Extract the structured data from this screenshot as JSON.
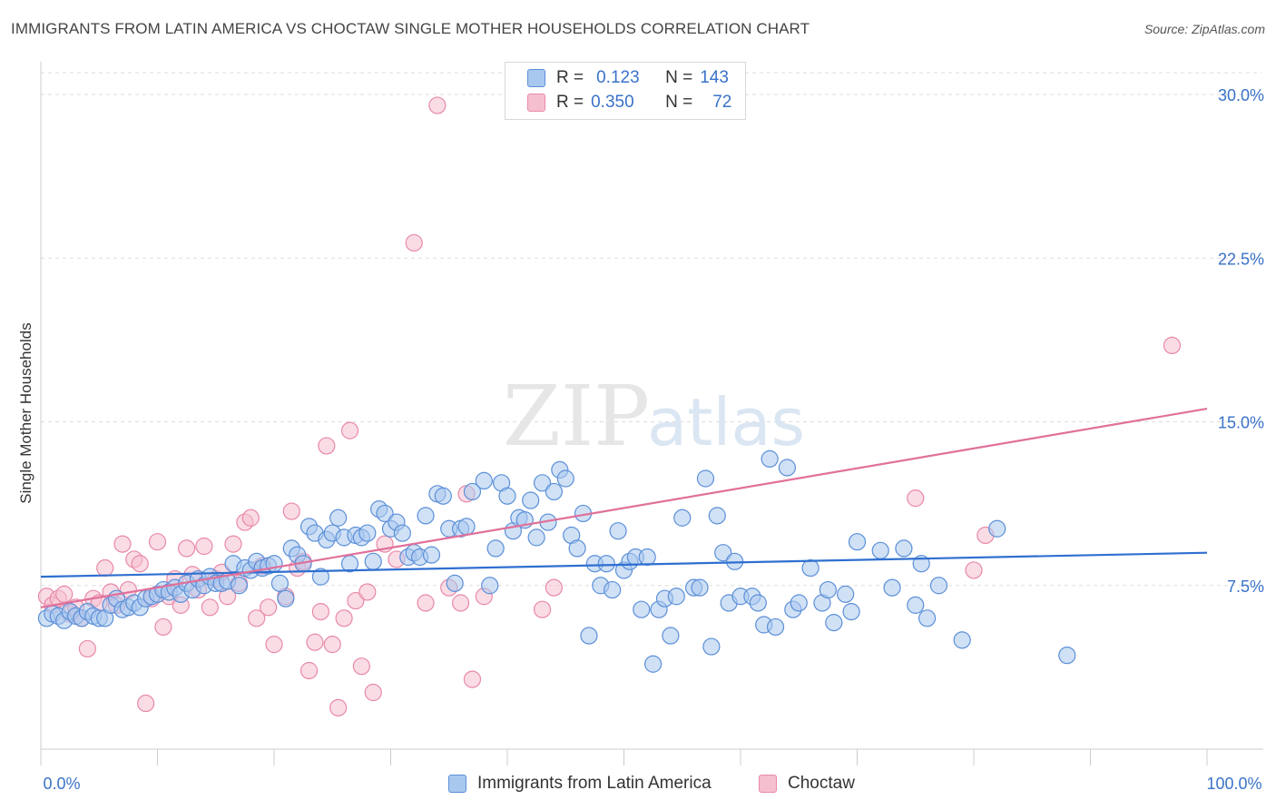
{
  "title": "IMMIGRANTS FROM LATIN AMERICA VS CHOCTAW SINGLE MOTHER HOUSEHOLDS CORRELATION CHART",
  "source": "Source: ZipAtlas.com",
  "watermark": {
    "zip": "ZIP",
    "atlas": "atlas"
  },
  "colors": {
    "blue_fill": "#a9c8ef",
    "blue_stroke": "#5b8fd8",
    "blue_line": "#2f6fd0",
    "pink_fill": "#f6bfd0",
    "pink_stroke": "#e889a8",
    "pink_line": "#e0709a",
    "axis_label": "#3a72c8",
    "grid": "#dddddd"
  },
  "legend": {
    "r_label": "R =",
    "n_label": "N =",
    "series1": {
      "r": "0.123",
      "n": "143"
    },
    "series2": {
      "r": "0.350",
      "n": "72"
    }
  },
  "chart_data": {
    "type": "scatter",
    "title": "IMMIGRANTS FROM LATIN AMERICA VS CHOCTAW SINGLE MOTHER HOUSEHOLDS CORRELATION CHART",
    "xlabel": "",
    "ylabel": "Single Mother Households",
    "xlim": [
      0,
      100
    ],
    "ylim": [
      0,
      31
    ],
    "x_tick_labels": [
      "0.0%",
      "100.0%"
    ],
    "y_ticks": [
      7.5,
      15.0,
      22.5,
      30.0
    ],
    "y_tick_labels": [
      "7.5%",
      "15.0%",
      "22.5%",
      "30.0%"
    ],
    "legend_position": "top-center",
    "series": [
      {
        "name": "Immigrants from Latin America",
        "r": 0.123,
        "n": 143,
        "trend": [
          [
            0,
            7.9
          ],
          [
            100,
            9.0
          ]
        ],
        "points": [
          [
            0.5,
            6.0
          ],
          [
            1,
            6.2
          ],
          [
            1.5,
            6.1
          ],
          [
            2,
            5.9
          ],
          [
            2.5,
            6.3
          ],
          [
            3,
            6.1
          ],
          [
            3.5,
            6.0
          ],
          [
            4,
            6.3
          ],
          [
            4.5,
            6.1
          ],
          [
            5,
            6.0
          ],
          [
            5.5,
            6.0
          ],
          [
            6,
            6.6
          ],
          [
            6.5,
            6.9
          ],
          [
            7,
            6.4
          ],
          [
            7.5,
            6.5
          ],
          [
            8,
            6.7
          ],
          [
            8.5,
            6.5
          ],
          [
            9,
            6.9
          ],
          [
            9.5,
            7.0
          ],
          [
            10,
            7.1
          ],
          [
            10.5,
            7.3
          ],
          [
            11,
            7.2
          ],
          [
            11.5,
            7.4
          ],
          [
            12,
            7.1
          ],
          [
            12.5,
            7.6
          ],
          [
            13,
            7.3
          ],
          [
            13.5,
            7.8
          ],
          [
            14,
            7.5
          ],
          [
            14.5,
            7.9
          ],
          [
            15,
            7.6
          ],
          [
            15.5,
            7.6
          ],
          [
            16,
            7.7
          ],
          [
            16.5,
            8.5
          ],
          [
            17,
            7.5
          ],
          [
            17.5,
            8.3
          ],
          [
            18,
            8.2
          ],
          [
            18.5,
            8.6
          ],
          [
            19,
            8.3
          ],
          [
            19.5,
            8.4
          ],
          [
            20,
            8.5
          ],
          [
            20.5,
            7.6
          ],
          [
            21,
            6.9
          ],
          [
            21.5,
            9.2
          ],
          [
            22,
            8.9
          ],
          [
            22.5,
            8.5
          ],
          [
            23,
            10.2
          ],
          [
            23.5,
            9.9
          ],
          [
            24,
            7.9
          ],
          [
            24.5,
            9.6
          ],
          [
            25,
            9.9
          ],
          [
            25.5,
            10.6
          ],
          [
            26,
            9.7
          ],
          [
            26.5,
            8.5
          ],
          [
            27,
            9.8
          ],
          [
            27.5,
            9.7
          ],
          [
            28,
            9.9
          ],
          [
            28.5,
            8.6
          ],
          [
            29,
            11.0
          ],
          [
            29.5,
            10.8
          ],
          [
            30,
            10.1
          ],
          [
            30.5,
            10.4
          ],
          [
            31,
            9.9
          ],
          [
            31.5,
            8.8
          ],
          [
            32,
            9.0
          ],
          [
            32.5,
            8.8
          ],
          [
            33,
            10.7
          ],
          [
            33.5,
            8.9
          ],
          [
            34,
            11.7
          ],
          [
            34.5,
            11.6
          ],
          [
            35,
            10.1
          ],
          [
            35.5,
            7.6
          ],
          [
            36,
            10.1
          ],
          [
            36.5,
            10.2
          ],
          [
            37,
            11.8
          ],
          [
            38,
            12.3
          ],
          [
            38.5,
            7.5
          ],
          [
            39,
            9.2
          ],
          [
            39.5,
            12.2
          ],
          [
            40,
            11.6
          ],
          [
            40.5,
            10.0
          ],
          [
            41,
            10.6
          ],
          [
            41.5,
            10.5
          ],
          [
            42,
            11.4
          ],
          [
            42.5,
            9.7
          ],
          [
            43,
            12.2
          ],
          [
            43.5,
            10.4
          ],
          [
            44,
            11.8
          ],
          [
            44.5,
            12.8
          ],
          [
            45,
            12.4
          ],
          [
            45.5,
            9.8
          ],
          [
            46,
            9.2
          ],
          [
            46.5,
            10.8
          ],
          [
            47,
            5.2
          ],
          [
            47.5,
            8.5
          ],
          [
            48,
            7.5
          ],
          [
            48.5,
            8.5
          ],
          [
            49,
            7.3
          ],
          [
            49.5,
            10.0
          ],
          [
            50,
            8.2
          ],
          [
            50.5,
            8.6
          ],
          [
            51,
            8.8
          ],
          [
            51.5,
            6.4
          ],
          [
            52,
            8.8
          ],
          [
            52.5,
            3.9
          ],
          [
            53,
            6.4
          ],
          [
            53.5,
            6.9
          ],
          [
            54,
            5.2
          ],
          [
            54.5,
            7.0
          ],
          [
            55,
            10.6
          ],
          [
            56,
            7.4
          ],
          [
            56.5,
            7.4
          ],
          [
            57,
            12.4
          ],
          [
            57.5,
            4.7
          ],
          [
            58,
            10.7
          ],
          [
            58.5,
            9.0
          ],
          [
            59,
            6.7
          ],
          [
            59.5,
            8.6
          ],
          [
            60,
            7.0
          ],
          [
            61,
            7.0
          ],
          [
            61.5,
            6.7
          ],
          [
            62,
            5.7
          ],
          [
            62.5,
            13.3
          ],
          [
            63,
            5.6
          ],
          [
            64,
            12.9
          ],
          [
            64.5,
            6.4
          ],
          [
            65,
            6.7
          ],
          [
            66,
            8.3
          ],
          [
            67,
            6.7
          ],
          [
            67.5,
            7.3
          ],
          [
            68,
            5.8
          ],
          [
            69,
            7.1
          ],
          [
            69.5,
            6.3
          ],
          [
            70,
            9.5
          ],
          [
            72,
            9.1
          ],
          [
            73,
            7.4
          ],
          [
            74,
            9.2
          ],
          [
            75,
            6.6
          ],
          [
            75.5,
            8.5
          ],
          [
            76,
            6.0
          ],
          [
            77,
            7.5
          ],
          [
            79,
            5.0
          ],
          [
            82,
            10.1
          ],
          [
            88,
            4.3
          ]
        ]
      },
      {
        "name": "Choctaw",
        "r": 0.35,
        "n": 72,
        "trend": [
          [
            0,
            6.5
          ],
          [
            100,
            15.6
          ]
        ],
        "points": [
          [
            0.5,
            7.0
          ],
          [
            1,
            6.6
          ],
          [
            1.5,
            6.9
          ],
          [
            2,
            7.1
          ],
          [
            2.5,
            6.2
          ],
          [
            3,
            6.5
          ],
          [
            3.5,
            6.0
          ],
          [
            4,
            4.6
          ],
          [
            4.5,
            6.9
          ],
          [
            5,
            6.7
          ],
          [
            5.5,
            8.3
          ],
          [
            6,
            7.2
          ],
          [
            6.5,
            6.6
          ],
          [
            7,
            9.4
          ],
          [
            7.5,
            7.3
          ],
          [
            8,
            8.7
          ],
          [
            8.5,
            8.5
          ],
          [
            9,
            2.1
          ],
          [
            9.5,
            6.9
          ],
          [
            10,
            9.5
          ],
          [
            10.5,
            5.6
          ],
          [
            11,
            7.0
          ],
          [
            11.5,
            7.8
          ],
          [
            12,
            6.6
          ],
          [
            12.5,
            9.2
          ],
          [
            13,
            8.0
          ],
          [
            13.5,
            7.3
          ],
          [
            14,
            9.3
          ],
          [
            14.5,
            6.5
          ],
          [
            15,
            7.8
          ],
          [
            15.5,
            8.1
          ],
          [
            16,
            7.0
          ],
          [
            16.5,
            9.4
          ],
          [
            17,
            7.6
          ],
          [
            17.5,
            10.4
          ],
          [
            18,
            10.6
          ],
          [
            18.5,
            6.0
          ],
          [
            19,
            8.4
          ],
          [
            19.5,
            6.5
          ],
          [
            20,
            4.8
          ],
          [
            21,
            7.0
          ],
          [
            21.5,
            10.9
          ],
          [
            22,
            8.3
          ],
          [
            22.5,
            8.6
          ],
          [
            23,
            3.6
          ],
          [
            23.5,
            4.9
          ],
          [
            24,
            6.3
          ],
          [
            24.5,
            13.9
          ],
          [
            25,
            4.8
          ],
          [
            25.5,
            1.9
          ],
          [
            26,
            6.0
          ],
          [
            26.5,
            14.6
          ],
          [
            27,
            6.8
          ],
          [
            27.5,
            3.8
          ],
          [
            28,
            7.2
          ],
          [
            28.5,
            2.6
          ],
          [
            29.5,
            9.4
          ],
          [
            30.5,
            8.7
          ],
          [
            32,
            23.2
          ],
          [
            33,
            6.7
          ],
          [
            34,
            29.5
          ],
          [
            35,
            7.4
          ],
          [
            36,
            6.7
          ],
          [
            36.5,
            11.7
          ],
          [
            37,
            3.2
          ],
          [
            38,
            7.0
          ],
          [
            43,
            6.4
          ],
          [
            44,
            7.4
          ],
          [
            75,
            11.5
          ],
          [
            80,
            8.2
          ],
          [
            81,
            9.8
          ],
          [
            97,
            18.5
          ]
        ]
      }
    ]
  },
  "bottom_legend": [
    "Immigrants from Latin America",
    "Choctaw"
  ]
}
